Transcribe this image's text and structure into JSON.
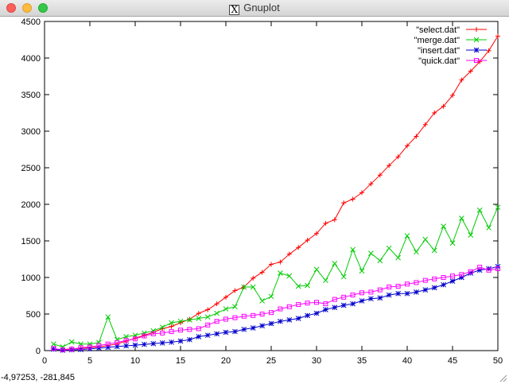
{
  "window": {
    "title": "Gnuplot",
    "app_icon": "x11-icon",
    "status_text": "-4,97253, -281,845"
  },
  "colors": {
    "select": "#ff0000",
    "merge": "#00cc00",
    "insert": "#0000cc",
    "quick": "#ff00ff"
  },
  "chart_data": {
    "type": "line",
    "title": "",
    "xlabel": "",
    "ylabel": "",
    "xlim": [
      0,
      50
    ],
    "ylim": [
      0,
      4500
    ],
    "xticks": [
      "0",
      "5",
      "10",
      "15",
      "20",
      "25",
      "30",
      "35",
      "40",
      "45",
      "50"
    ],
    "yticks": [
      "0",
      "500",
      "1000",
      "1500",
      "2000",
      "2500",
      "3000",
      "3500",
      "4000",
      "4500"
    ],
    "grid": false,
    "legend_position": "top-right",
    "x": [
      1,
      2,
      3,
      4,
      5,
      6,
      7,
      8,
      9,
      10,
      11,
      12,
      13,
      14,
      15,
      16,
      17,
      18,
      19,
      20,
      21,
      22,
      23,
      24,
      25,
      26,
      27,
      28,
      29,
      30,
      31,
      32,
      33,
      34,
      35,
      36,
      37,
      38,
      39,
      40,
      41,
      42,
      43,
      44,
      45,
      46,
      47,
      48,
      49,
      50
    ],
    "series": [
      {
        "name": "\"select.dat\"",
        "marker": "plus",
        "color": "#ff0000",
        "values": [
          20,
          15,
          25,
          30,
          40,
          50,
          70,
          90,
          130,
          170,
          210,
          250,
          300,
          330,
          380,
          430,
          510,
          560,
          640,
          730,
          820,
          870,
          990,
          1070,
          1180,
          1210,
          1320,
          1410,
          1510,
          1600,
          1740,
          1790,
          2020,
          2070,
          2160,
          2280,
          2400,
          2530,
          2650,
          2800,
          2930,
          3090,
          3250,
          3340,
          3490,
          3700,
          3820,
          3950,
          4100,
          4300
        ]
      },
      {
        "name": "\"merge.dat\"",
        "marker": "cross",
        "color": "#00cc00",
        "values": [
          90,
          50,
          120,
          90,
          90,
          110,
          460,
          150,
          190,
          210,
          240,
          270,
          320,
          380,
          400,
          420,
          440,
          460,
          510,
          570,
          600,
          870,
          870,
          680,
          740,
          1060,
          1020,
          880,
          890,
          1110,
          960,
          1190,
          1010,
          1380,
          1090,
          1330,
          1230,
          1400,
          1270,
          1570,
          1350,
          1520,
          1370,
          1700,
          1470,
          1810,
          1580,
          1920,
          1680,
          1960
        ]
      },
      {
        "name": "\"insert.dat\"",
        "marker": "star",
        "color": "#0000cc",
        "values": [
          20,
          5,
          10,
          15,
          25,
          35,
          45,
          55,
          65,
          75,
          85,
          95,
          105,
          115,
          130,
          150,
          190,
          210,
          230,
          250,
          260,
          290,
          310,
          340,
          370,
          400,
          420,
          440,
          480,
          510,
          560,
          590,
          620,
          640,
          680,
          710,
          720,
          760,
          780,
          780,
          800,
          830,
          860,
          900,
          950,
          1000,
          1060,
          1100,
          1120,
          1150
        ]
      },
      {
        "name": "\"quick.dat\"",
        "marker": "square",
        "color": "#ff00ff",
        "values": [
          30,
          10,
          20,
          40,
          50,
          70,
          90,
          110,
          140,
          160,
          200,
          230,
          240,
          260,
          280,
          290,
          300,
          350,
          400,
          430,
          450,
          470,
          480,
          500,
          520,
          570,
          600,
          630,
          650,
          660,
          640,
          700,
          730,
          760,
          790,
          800,
          830,
          870,
          880,
          910,
          930,
          960,
          980,
          1000,
          1020,
          1040,
          1080,
          1140,
          1100,
          1120
        ]
      }
    ]
  }
}
